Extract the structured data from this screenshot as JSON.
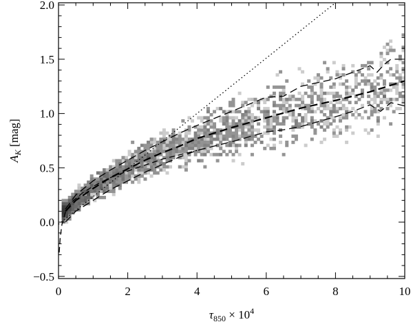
{
  "chart_data": {
    "type": "scatter",
    "title": "",
    "xlabel": {
      "base": "τ",
      "sub": "850",
      "mid": " × 10",
      "sup": "4"
    },
    "ylabel": {
      "base": "A",
      "sub": "K",
      "rest": " [mag]"
    },
    "xlim": [
      0,
      10
    ],
    "ylim": [
      -0.52,
      2.02
    ],
    "xticks": [
      0,
      2,
      4,
      6,
      8,
      10
    ],
    "xtick_labels": [
      "0",
      "2",
      "4",
      "6",
      "8",
      "10"
    ],
    "yticks": [
      -0.5,
      0.0,
      0.5,
      1.0,
      1.5,
      2.0
    ],
    "ytick_labels": [
      "−0.5",
      "0.0",
      "0.5",
      "1.0",
      "1.5",
      "2.0"
    ],
    "grid": false,
    "legend": "none",
    "density_model": {
      "description": "grey 2D histogram of pixel counts following the median relation",
      "color_low": "#d8d8d8",
      "color_high": "#3a3a3a"
    },
    "series": [
      {
        "style": "dashed-thick",
        "x": [
          0.2,
          0.5,
          1.0,
          1.5,
          2.0,
          2.5,
          3.0,
          3.5,
          4.0,
          5.0,
          6.0,
          7.0,
          8.0,
          9.0,
          10.0
        ],
        "y": [
          0.1,
          0.2,
          0.31,
          0.41,
          0.49,
          0.57,
          0.64,
          0.7,
          0.77,
          0.87,
          0.96,
          1.05,
          1.12,
          1.2,
          1.3
        ]
      },
      {
        "style": "dashed-thin",
        "x": [
          0.2,
          0.5,
          1.0,
          1.5,
          2.0,
          2.5,
          3.0,
          3.5,
          4.0,
          5.0,
          6.0,
          6.5,
          7.0,
          8.0,
          8.5,
          9.0,
          9.2,
          9.4,
          9.6,
          10.0
        ],
        "y": [
          0.12,
          0.25,
          0.38,
          0.48,
          0.57,
          0.66,
          0.74,
          0.82,
          0.89,
          1.02,
          1.15,
          1.16,
          1.25,
          1.32,
          1.38,
          1.44,
          1.38,
          1.45,
          1.5,
          1.5
        ]
      },
      {
        "style": "dashed-thin",
        "x": [
          0.2,
          0.5,
          1.0,
          1.5,
          2.0,
          2.5,
          3.0,
          3.5,
          4.0,
          5.0,
          6.0,
          6.5,
          7.0,
          8.0,
          8.5,
          9.0,
          9.3,
          9.6,
          10.0
        ],
        "y": [
          0.0,
          0.1,
          0.2,
          0.3,
          0.38,
          0.46,
          0.53,
          0.6,
          0.66,
          0.74,
          0.83,
          0.85,
          0.88,
          0.97,
          1.02,
          1.08,
          1.02,
          1.1,
          1.07
        ]
      },
      {
        "style": "dashed-fit",
        "x": [
          0.02,
          0.05,
          0.1,
          0.2,
          0.4,
          0.7,
          1.0,
          1.5,
          2.0,
          3.0,
          4.0
        ],
        "y": [
          -0.28,
          -0.14,
          -0.02,
          0.09,
          0.19,
          0.27,
          0.33,
          0.41,
          0.47,
          0.58,
          0.66
        ]
      },
      {
        "style": "dotted",
        "x": [
          0.0,
          8.0
        ],
        "y": [
          -0.02,
          2.02
        ]
      }
    ]
  }
}
